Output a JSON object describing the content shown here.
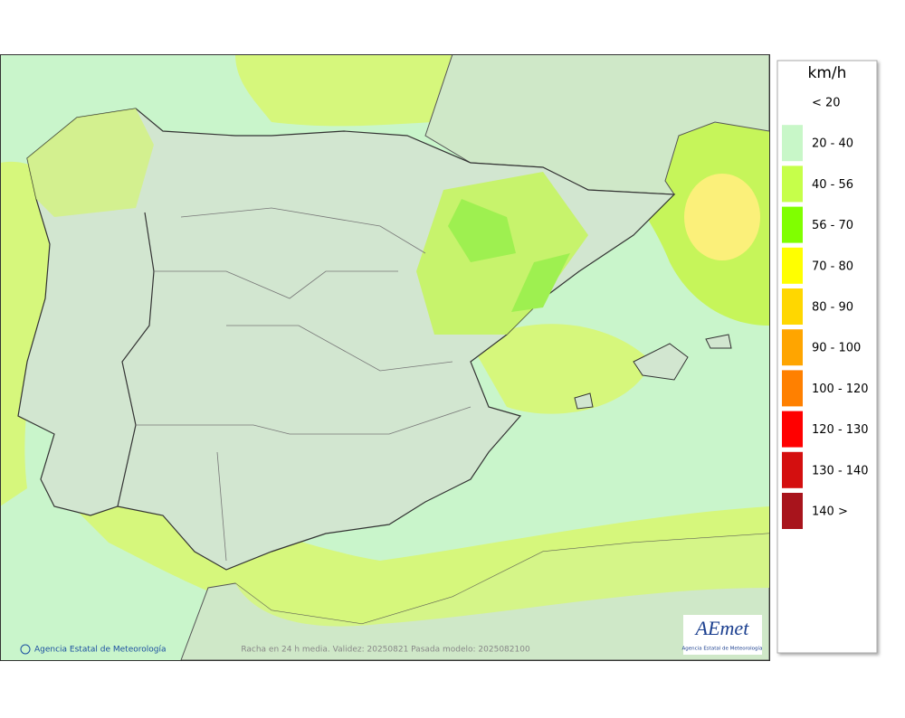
{
  "map": {
    "footer_left": "Agencia Estatal de Meteorología",
    "footer_center": "Racha en 24 h media. Validez: 20250821 Pasada modelo: 2025082100",
    "logo_text": "AEmet",
    "logo_subtitle": "Agencia Estatal de Meteorología"
  },
  "legend": {
    "unit": "km/h",
    "items": [
      {
        "label": "< 20",
        "color": "none"
      },
      {
        "label": "20 - 40",
        "color": "#c8f7c8"
      },
      {
        "label": "40 - 56",
        "color": "#c6ff4a"
      },
      {
        "label": "56 - 70",
        "color": "#80ff00"
      },
      {
        "label": "70 - 80",
        "color": "#ffff00"
      },
      {
        "label": "80 - 90",
        "color": "#ffd700"
      },
      {
        "label": "90 - 100",
        "color": "#ffa500"
      },
      {
        "label": "100 - 120",
        "color": "#ff8000"
      },
      {
        "label": "120 - 130",
        "color": "#ff0000"
      },
      {
        "label": "130 - 140",
        "color": "#d40f0f"
      },
      {
        "label": "140 >",
        "color": "#a8141c"
      }
    ]
  }
}
